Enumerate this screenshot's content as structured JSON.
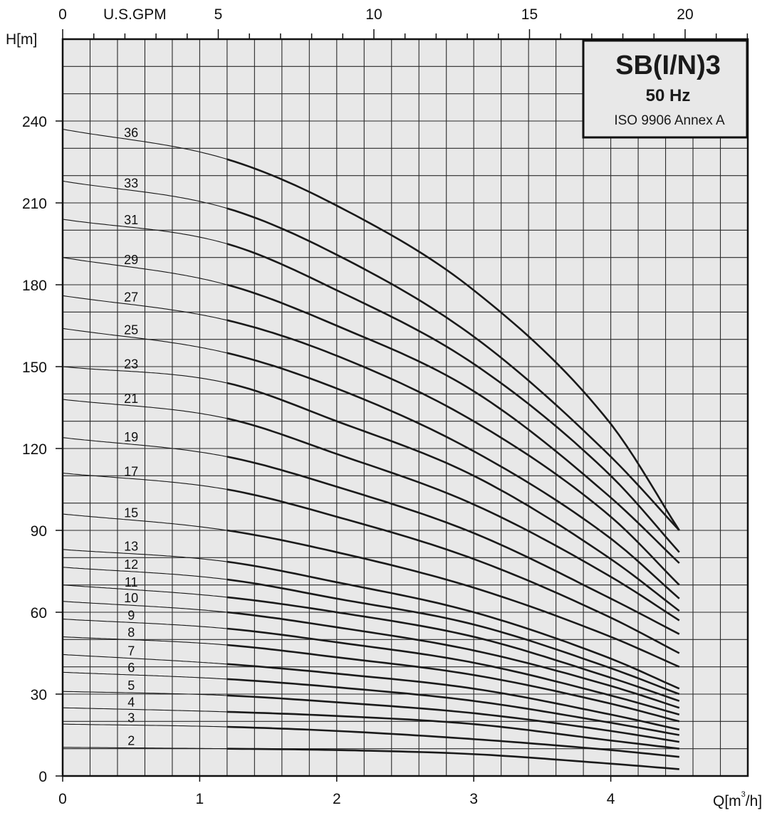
{
  "chart_data": {
    "type": "line",
    "title": "SB(I/N)3",
    "subtitle": "50 Hz",
    "standard": "ISO 9906 Annex A",
    "ylabel": "H[m]",
    "xlabel": "Q[m³/h]",
    "xlabel_main": "Q[m",
    "xlabel_sup": "3",
    "xlabel_tail": "/h]",
    "top_axis_label": "U.S.GPM",
    "xlim": [
      0,
      5
    ],
    "ylim": [
      0,
      270
    ],
    "x_ticks": [
      "0",
      "1",
      "2",
      "3",
      "4"
    ],
    "y_ticks": [
      "0",
      "30",
      "60",
      "90",
      "120",
      "150",
      "180",
      "210",
      "240"
    ],
    "top_ticks": [
      "0",
      "5",
      "10",
      "15",
      "20"
    ],
    "x_minor_step": 0.2,
    "y_minor_step": 10,
    "gpm_per_m3h": 4.4029,
    "grid": true,
    "bold_range": [
      1.2,
      4.5
    ],
    "series": [
      {
        "name": "2",
        "x": [
          0,
          1.2,
          2,
          3,
          4,
          4.5
        ],
        "y": [
          10.5,
          10,
          9.5,
          8,
          4.5,
          2.5
        ]
      },
      {
        "name": "3",
        "x": [
          0,
          1.2,
          2,
          3,
          4,
          4.5
        ],
        "y": [
          19,
          18,
          16.5,
          13.5,
          9.5,
          7
        ]
      },
      {
        "name": "4",
        "x": [
          0,
          1.2,
          2,
          3,
          4,
          4.5
        ],
        "y": [
          25,
          23.5,
          22,
          19,
          13,
          10
        ]
      },
      {
        "name": "5",
        "x": [
          0,
          1.2,
          2,
          3,
          4,
          4.5
        ],
        "y": [
          31,
          29.5,
          27,
          23,
          16.5,
          12.5
        ]
      },
      {
        "name": "6",
        "x": [
          0,
          1.2,
          2,
          3,
          4,
          4.5
        ],
        "y": [
          38,
          35.5,
          32.5,
          27.5,
          19.5,
          15
        ]
      },
      {
        "name": "7",
        "x": [
          0,
          1.2,
          2,
          3,
          4,
          4.5
        ],
        "y": [
          44.5,
          41,
          37.5,
          32,
          22.5,
          17
        ]
      },
      {
        "name": "8",
        "x": [
          0,
          1.2,
          2,
          3,
          4,
          4.5
        ],
        "y": [
          51,
          48,
          43.5,
          37,
          26.5,
          20
        ]
      },
      {
        "name": "9",
        "x": [
          0,
          1.2,
          2,
          3,
          4,
          4.5
        ],
        "y": [
          57.5,
          54,
          49,
          41.5,
          29.5,
          22.5
        ]
      },
      {
        "name": "10",
        "x": [
          0,
          1.2,
          2,
          3,
          4,
          4.5
        ],
        "y": [
          64,
          60,
          54.5,
          46,
          33,
          25
        ]
      },
      {
        "name": "11",
        "x": [
          0,
          1.2,
          2,
          3,
          4,
          4.5
        ],
        "y": [
          70,
          65.5,
          60,
          51,
          36,
          27.5
        ]
      },
      {
        "name": "12",
        "x": [
          0,
          1.2,
          2,
          3,
          4,
          4.5
        ],
        "y": [
          76.5,
          72,
          65,
          55.5,
          39.5,
          30
        ]
      },
      {
        "name": "13",
        "x": [
          0,
          1.2,
          2,
          3,
          4,
          4.5
        ],
        "y": [
          83,
          78.5,
          71,
          60,
          43,
          32
        ]
      },
      {
        "name": "15",
        "x": [
          0,
          1.2,
          2,
          3,
          4,
          4.5
        ],
        "y": [
          96,
          90,
          82,
          69,
          51,
          40
        ]
      },
      {
        "name": "17",
        "x": [
          0,
          1.2,
          2,
          3,
          4,
          4.5
        ],
        "y": [
          111,
          105,
          95,
          79.5,
          58,
          45
        ]
      },
      {
        "name": "19",
        "x": [
          0,
          1.2,
          2,
          3,
          4,
          4.5
        ],
        "y": [
          124,
          117,
          106,
          89,
          65,
          52
        ]
      },
      {
        "name": "21",
        "x": [
          0,
          1.2,
          2,
          3,
          4,
          4.5
        ],
        "y": [
          138,
          131,
          118,
          99.5,
          73,
          57
        ]
      },
      {
        "name": "23",
        "x": [
          0,
          1.2,
          2,
          3,
          4,
          4.5
        ],
        "y": [
          150,
          144,
          130,
          110,
          79.5,
          60.5
        ]
      },
      {
        "name": "25",
        "x": [
          0,
          1.2,
          2,
          3,
          4,
          4.5
        ],
        "y": [
          164,
          155,
          142,
          119,
          87,
          65
        ]
      },
      {
        "name": "27",
        "x": [
          0,
          1.2,
          2,
          3,
          4,
          4.5
        ],
        "y": [
          176,
          167,
          154,
          130,
          95,
          70
        ]
      },
      {
        "name": "29",
        "x": [
          0,
          1.2,
          2,
          3,
          4,
          4.5
        ],
        "y": [
          190,
          180,
          165,
          141,
          102,
          78
        ]
      },
      {
        "name": "31",
        "x": [
          0,
          1.2,
          2,
          3,
          4,
          4.5
        ],
        "y": [
          204,
          195,
          178,
          151,
          110,
          82
        ]
      },
      {
        "name": "33",
        "x": [
          0,
          1.2,
          2,
          3,
          4,
          4.5
        ],
        "y": [
          218,
          208,
          191,
          161,
          117,
          90
        ]
      },
      {
        "name": "36",
        "x": [
          0,
          1.2,
          2,
          3,
          4,
          4.5
        ],
        "y": [
          237,
          226,
          209,
          178,
          129,
          90
        ]
      }
    ]
  }
}
